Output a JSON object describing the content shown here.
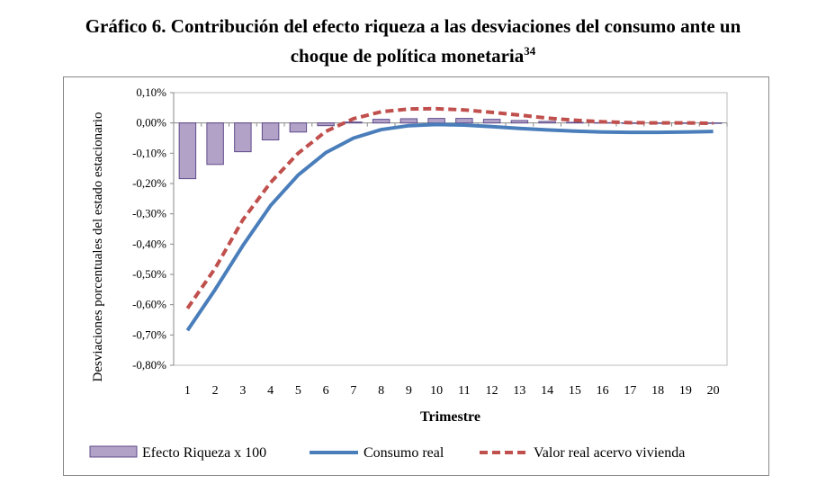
{
  "title_line1": "Gráfico 6. Contribución del efecto riqueza a las desviaciones del consumo ante un",
  "title_line2": "choque de política monetaria",
  "title_footnote": "34",
  "chart_data": {
    "type": "bar+line",
    "xlabel": "Trimestre",
    "ylabel": "Desviaciones porcentuales del estado estacionario",
    "ylim": [
      -0.8,
      0.1
    ],
    "yticks": [
      "0,10%",
      "0,00%",
      "-0,10%",
      "-0,20%",
      "-0,30%",
      "-0,40%",
      "-0,50%",
      "-0,60%",
      "-0,70%",
      "-0,80%"
    ],
    "ytick_values": [
      0.1,
      0,
      -0.1,
      -0.2,
      -0.3,
      -0.4,
      -0.5,
      -0.6,
      -0.7,
      -0.8
    ],
    "categories": [
      "1",
      "2",
      "3",
      "4",
      "5",
      "6",
      "7",
      "8",
      "9",
      "10",
      "11",
      "12",
      "13",
      "14",
      "15",
      "16",
      "17",
      "18",
      "19",
      "20"
    ],
    "grid": false,
    "legend_placement": "bottom",
    "series": [
      {
        "name": "Efecto Riqueza x 100",
        "kind": "bar",
        "color": "#b3a2c7",
        "values": [
          -0.184,
          -0.137,
          -0.095,
          -0.056,
          -0.03,
          -0.009,
          0.003,
          0.012,
          0.014,
          0.015,
          0.015,
          0.012,
          0.008,
          0.005,
          0.002,
          0.001,
          0.0,
          0.0,
          0.0,
          0.0
        ]
      },
      {
        "name": "Consumo real",
        "kind": "line",
        "color": "#4a7ebb",
        "values": [
          -0.685,
          -0.55,
          -0.405,
          -0.273,
          -0.172,
          -0.098,
          -0.05,
          -0.022,
          -0.009,
          -0.005,
          -0.007,
          -0.012,
          -0.018,
          -0.023,
          -0.027,
          -0.03,
          -0.031,
          -0.031,
          -0.03,
          -0.028
        ]
      },
      {
        "name": "Valor real acervo vivienda",
        "kind": "dashed-line",
        "color": "#c0504d",
        "values": [
          -0.612,
          -0.48,
          -0.32,
          -0.197,
          -0.1,
          -0.028,
          0.014,
          0.037,
          0.046,
          0.047,
          0.043,
          0.035,
          0.026,
          0.016,
          0.009,
          0.004,
          0.001,
          0.0,
          0.0,
          -0.001
        ]
      }
    ]
  }
}
